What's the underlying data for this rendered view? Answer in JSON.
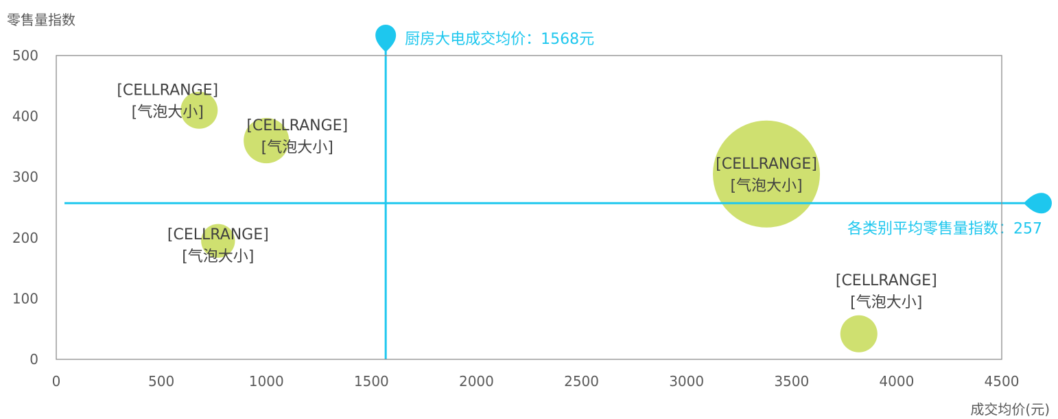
{
  "chart_data": {
    "type": "bubble",
    "ylabel": "零售量指数",
    "xlabel": "成交均价(元)",
    "xlim": [
      0,
      4500
    ],
    "ylim": [
      0,
      500
    ],
    "x_ticks": [
      "0",
      "500",
      "1000",
      "1500",
      "2000",
      "2500",
      "3000",
      "3500",
      "4000",
      "4500"
    ],
    "y_ticks": [
      "0",
      "100",
      "200",
      "300",
      "400",
      "500"
    ],
    "grid": false,
    "bubble_color": "#cfe070",
    "reference_color": "#1ec7ee",
    "points": [
      {
        "x": 680,
        "y": 410,
        "size": 12,
        "label_lines": [
          "[CELLRANGE]",
          "[气泡大小]"
        ],
        "label_dx": -46,
        "label_dy": -14
      },
      {
        "x": 1000,
        "y": 360,
        "size": 18,
        "label_lines": [
          "[CELLRANGE]",
          "[气泡大小]"
        ],
        "label_dx": 45,
        "label_dy": -7
      },
      {
        "x": 770,
        "y": 195,
        "size": 10,
        "label_lines": [
          "[CELLRANGE]",
          "[气泡大小]"
        ],
        "label_dx": 0,
        "label_dy": 6
      },
      {
        "x": 3380,
        "y": 305,
        "size": 100,
        "label_lines": [
          "[CELLRANGE]",
          "[气泡大小]"
        ],
        "label_dx": 0,
        "label_dy": 0
      },
      {
        "x": 3820,
        "y": 42,
        "size": 12,
        "label_lines": [
          "[CELLRANGE]",
          "[气泡大小]"
        ],
        "label_dx": 40,
        "label_dy": -63
      }
    ],
    "reference_lines": {
      "vertical": {
        "value": 1568,
        "label": "厨房大电成交均价：1568元"
      },
      "horizontal": {
        "value": 257,
        "label": "各类别平均零售量指数：257"
      }
    }
  }
}
